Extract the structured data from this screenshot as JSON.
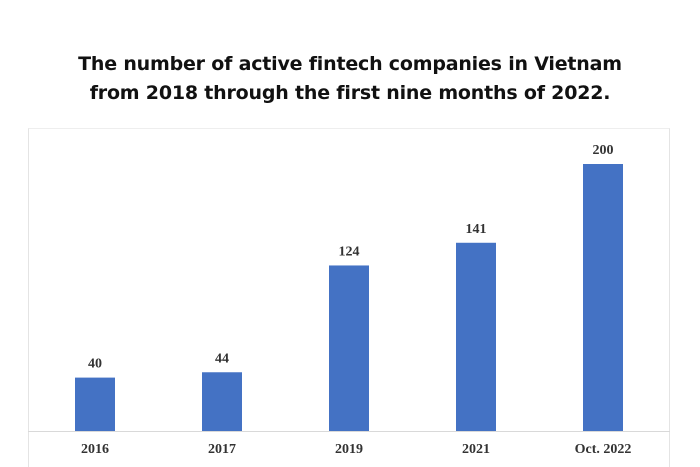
{
  "chart_data": {
    "type": "bar",
    "title": "The number of active fintech companies in Vietnam from 2018 through the first nine months of 2022.",
    "title_lines": [
      "The number of active fintech companies in Vietnam",
      "from 2018 through the first nine months of 2022."
    ],
    "categories": [
      "2016",
      "2017",
      "2019",
      "2021",
      "Oct. 2022"
    ],
    "values": [
      40,
      44,
      124,
      141,
      200
    ],
    "data_labels": [
      "40",
      "44",
      "124",
      "141",
      "200"
    ],
    "xlabel": "",
    "ylabel": "",
    "ylim": [
      0,
      200
    ],
    "grid": false,
    "legend": "none",
    "bar_color": "#4472c4"
  }
}
